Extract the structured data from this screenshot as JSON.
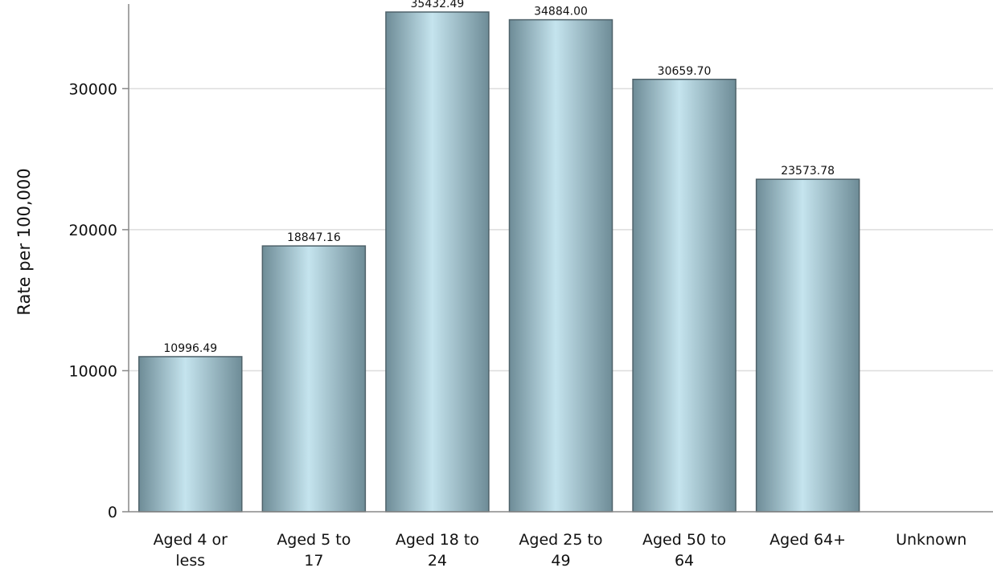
{
  "chart_data": {
    "type": "bar",
    "title": "",
    "xlabel": "",
    "ylabel": "Rate per 100,000",
    "categories": [
      "Aged 4 or less",
      "Aged 5 to 17",
      "Aged 18 to 24",
      "Aged 25 to 49",
      "Aged 50 to 64",
      "Aged 64+",
      "Unknown"
    ],
    "category_label_lines": [
      [
        "Aged 4 or",
        "less"
      ],
      [
        "Aged 5 to",
        "17"
      ],
      [
        "Aged 18 to",
        "24"
      ],
      [
        "Aged 25 to",
        "49"
      ],
      [
        "Aged 50 to",
        "64"
      ],
      [
        "Aged 64+"
      ],
      [
        "Unknown"
      ]
    ],
    "values": [
      10996.49,
      18847.16,
      35432.49,
      34884.0,
      30659.7,
      23573.78,
      null
    ],
    "data_labels": [
      "10996.49",
      "18847.16",
      "35432.49",
      "34884.00",
      "30659.70",
      "23573.78",
      ""
    ],
    "ylim": [
      0,
      36000
    ],
    "yticks": [
      0,
      10000,
      20000,
      30000
    ],
    "ytick_labels": [
      "0",
      "10000",
      "20000",
      "30000"
    ],
    "grid": true,
    "legend": "none",
    "colors": {
      "bar_center": "#c5e4ee",
      "bar_edge": "#6e8c97",
      "bar_outline": "#4f626a",
      "grid": "#dddddd",
      "axis": "#888888"
    }
  }
}
